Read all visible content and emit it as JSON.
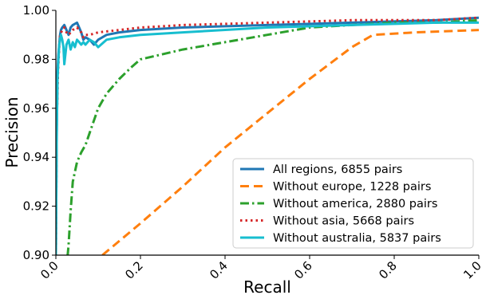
{
  "chart_data": {
    "type": "line",
    "xlabel": "Recall",
    "ylabel": "Precision",
    "xlim": [
      0.0,
      1.0
    ],
    "ylim": [
      0.9,
      1.0
    ],
    "x_ticks": [
      "0.0",
      "0.2",
      "0.4",
      "0.6",
      "0.8",
      "1.0"
    ],
    "x_tick_values": [
      0.0,
      0.2,
      0.4,
      0.6,
      0.8,
      1.0
    ],
    "y_ticks": [
      "0.90",
      "0.92",
      "0.94",
      "0.96",
      "0.98",
      "1.00"
    ],
    "y_tick_values": [
      0.9,
      0.92,
      0.94,
      0.96,
      0.98,
      1.0
    ],
    "grid": false,
    "legend_position": "lower-right",
    "series": [
      {
        "name": "All regions, 6855 pairs",
        "color": "#1f77b4",
        "style": "solid",
        "x": [
          0.0,
          0.002,
          0.004,
          0.006,
          0.008,
          0.01,
          0.012,
          0.015,
          0.02,
          0.025,
          0.03,
          0.035,
          0.04,
          0.05,
          0.06,
          0.065,
          0.07,
          0.08,
          0.09,
          0.1,
          0.12,
          0.15,
          0.2,
          0.3,
          0.5,
          0.7,
          0.9,
          1.0
        ],
        "y": [
          0.9,
          0.95,
          0.975,
          0.982,
          0.986,
          0.99,
          0.992,
          0.993,
          0.994,
          0.992,
          0.99,
          0.993,
          0.994,
          0.995,
          0.991,
          0.988,
          0.989,
          0.988,
          0.986,
          0.988,
          0.99,
          0.991,
          0.992,
          0.993,
          0.994,
          0.995,
          0.996,
          0.997
        ]
      },
      {
        "name": "Without europe, 1228 pairs",
        "color": "#ff7f0e",
        "style": "dashed",
        "x": [
          0.11,
          0.2,
          0.3,
          0.4,
          0.5,
          0.6,
          0.7,
          0.75,
          0.85,
          1.0
        ],
        "y": [
          0.9,
          0.913,
          0.928,
          0.944,
          0.958,
          0.972,
          0.985,
          0.99,
          0.991,
          0.992
        ]
      },
      {
        "name": "Without america, 2880 pairs",
        "color": "#2ca02c",
        "style": "dashdot",
        "x": [
          0.025,
          0.028,
          0.03,
          0.035,
          0.04,
          0.05,
          0.06,
          0.07,
          0.08,
          0.1,
          0.12,
          0.15,
          0.18,
          0.2,
          0.25,
          0.3,
          0.4,
          0.5,
          0.6,
          0.7,
          0.8,
          0.9,
          1.0
        ],
        "y": [
          0.9,
          0.9,
          0.904,
          0.918,
          0.93,
          0.938,
          0.942,
          0.945,
          0.95,
          0.96,
          0.966,
          0.972,
          0.977,
          0.98,
          0.982,
          0.984,
          0.987,
          0.99,
          0.993,
          0.994,
          0.995,
          0.995,
          0.996
        ]
      },
      {
        "name": "Without asia, 5668 pairs",
        "color": "#d62728",
        "style": "dotted",
        "x": [
          0.0,
          0.002,
          0.005,
          0.008,
          0.01,
          0.015,
          0.02,
          0.025,
          0.03,
          0.04,
          0.05,
          0.06,
          0.065,
          0.07,
          0.08,
          0.1,
          0.15,
          0.2,
          0.3,
          0.5,
          0.7,
          0.9,
          1.0
        ],
        "y": [
          0.9,
          0.955,
          0.975,
          0.985,
          0.99,
          0.992,
          0.993,
          0.991,
          0.99,
          0.992,
          0.993,
          0.991,
          0.989,
          0.99,
          0.99,
          0.991,
          0.992,
          0.993,
          0.994,
          0.995,
          0.996,
          0.996,
          0.997
        ]
      },
      {
        "name": "Without australia, 5837 pairs",
        "color": "#17becf",
        "style": "solid",
        "x": [
          0.0,
          0.002,
          0.004,
          0.006,
          0.008,
          0.01,
          0.012,
          0.015,
          0.018,
          0.02,
          0.025,
          0.03,
          0.035,
          0.04,
          0.045,
          0.05,
          0.055,
          0.06,
          0.065,
          0.07,
          0.08,
          0.09,
          0.1,
          0.12,
          0.15,
          0.2,
          0.3,
          0.5,
          0.7,
          0.9,
          1.0
        ],
        "y": [
          0.9,
          0.95,
          0.972,
          0.98,
          0.986,
          0.988,
          0.99,
          0.988,
          0.985,
          0.978,
          0.986,
          0.988,
          0.984,
          0.987,
          0.985,
          0.988,
          0.987,
          0.986,
          0.987,
          0.986,
          0.988,
          0.987,
          0.985,
          0.988,
          0.989,
          0.99,
          0.991,
          0.993,
          0.994,
          0.995,
          0.995
        ]
      }
    ]
  }
}
